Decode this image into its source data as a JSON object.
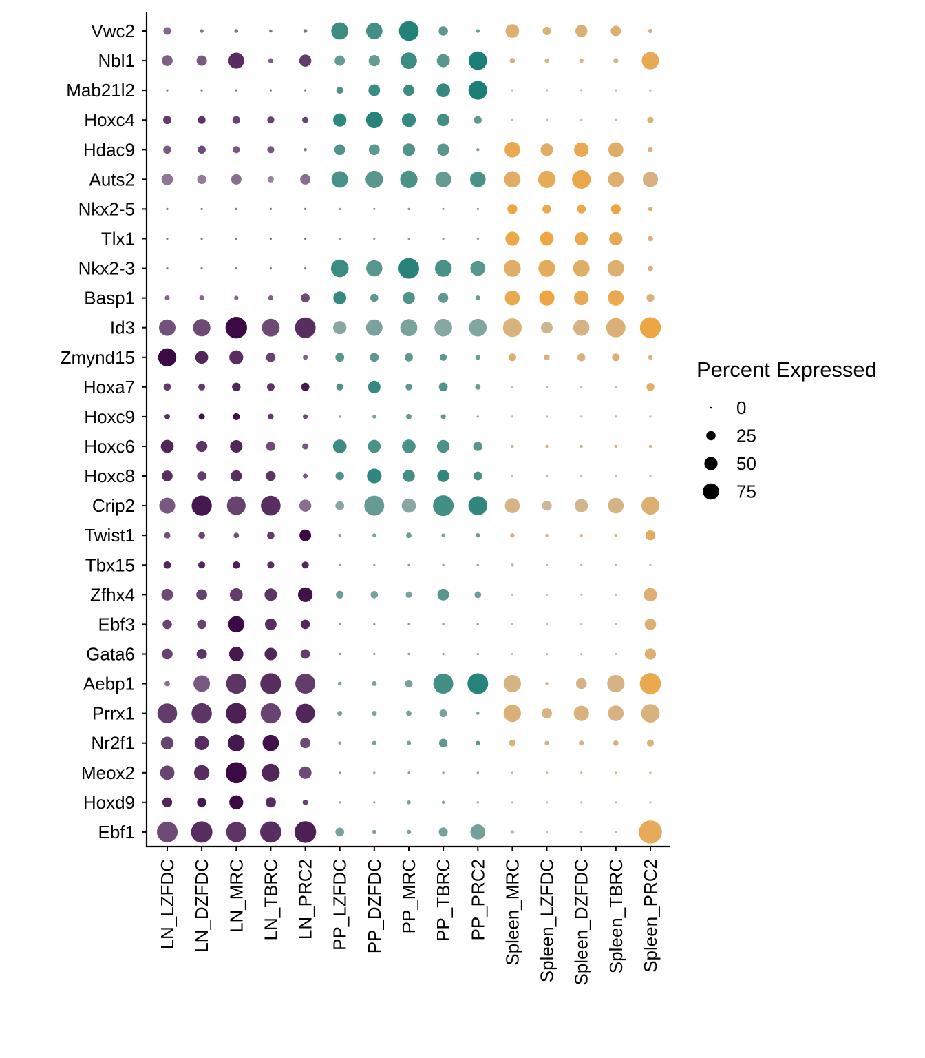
{
  "chart_data": {
    "type": "dot",
    "genes": [
      "Vwc2",
      "Nbl1",
      "Mab21l2",
      "Hoxc4",
      "Hdac9",
      "Auts2",
      "Nkx2-5",
      "Tlx1",
      "Nkx2-3",
      "Basp1",
      "Id3",
      "Zmynd15",
      "Hoxa7",
      "Hoxc9",
      "Hoxc6",
      "Hoxc8",
      "Crip2",
      "Twist1",
      "Tbx15",
      "Zfhx4",
      "Ebf3",
      "Gata6",
      "Aebp1",
      "Prrx1",
      "Nr2f1",
      "Meox2",
      "Hoxd9",
      "Ebf1"
    ],
    "cell_types": [
      "LN_LZFDC",
      "LN_DZFDC",
      "LN_MRC",
      "LN_TBRC",
      "LN_PRC2",
      "PP_LZFDC",
      "PP_DZFDC",
      "PP_MRC",
      "PP_TBRC",
      "PP_PRC2",
      "Spleen_MRC",
      "Spleen_LZFDC",
      "Spleen_DZFDC",
      "Spleen_TBRC",
      "Spleen_PRC2"
    ],
    "groups": [
      {
        "name": "LN",
        "color_strong": "#3b0a45",
        "color_weak": "#a99aae"
      },
      {
        "name": "PP",
        "color_strong": "#1a7f74",
        "color_weak": "#a3b1ad"
      },
      {
        "name": "Spleen",
        "color_strong": "#f0a540",
        "color_weak": "#c9b9a2"
      }
    ],
    "percent_expressed": [
      [
        12,
        3,
        3,
        2,
        3,
        60,
        55,
        80,
        18,
        3,
        38,
        14,
        30,
        22,
        4
      ],
      [
        24,
        22,
        52,
        5,
        30,
        22,
        26,
        55,
        35,
        70,
        6,
        4,
        4,
        5,
        62
      ],
      [
        1,
        1,
        1,
        1,
        1,
        10,
        28,
        25,
        38,
        72,
        1,
        1,
        1,
        1,
        1
      ],
      [
        14,
        12,
        12,
        10,
        8,
        36,
        56,
        40,
        32,
        12,
        1,
        1,
        1,
        1,
        8
      ],
      [
        13,
        13,
        10,
        10,
        2,
        24,
        24,
        32,
        30,
        2,
        50,
        32,
        44,
        46,
        5
      ],
      [
        27,
        17,
        22,
        8,
        22,
        56,
        62,
        62,
        52,
        50,
        55,
        62,
        72,
        50,
        48
      ],
      [
        1,
        1,
        1,
        1,
        1,
        1,
        1,
        1,
        1,
        1,
        20,
        16,
        16,
        20,
        4
      ],
      [
        1,
        1,
        1,
        1,
        1,
        1,
        1,
        1,
        1,
        1,
        40,
        38,
        36,
        36,
        6
      ],
      [
        1,
        1,
        1,
        1,
        1,
        64,
        54,
        88,
        58,
        46,
        58,
        58,
        56,
        56,
        6
      ],
      [
        5,
        5,
        4,
        5,
        16,
        34,
        13,
        30,
        20,
        5,
        46,
        48,
        44,
        50,
        12
      ],
      [
        56,
        62,
        96,
        65,
        88,
        36,
        56,
        60,
        64,
        64,
        72,
        28,
        54,
        76,
        90
      ],
      [
        68,
        34,
        40,
        18,
        5,
        16,
        16,
        14,
        10,
        5,
        12,
        7,
        13,
        12,
        4
      ],
      [
        11,
        10,
        15,
        12,
        14,
        10,
        32,
        9,
        16,
        6,
        1,
        1,
        1,
        1,
        13
      ],
      [
        6,
        8,
        10,
        7,
        5,
        1,
        3,
        6,
        5,
        1,
        1,
        1,
        1,
        1,
        1
      ],
      [
        34,
        26,
        32,
        18,
        8,
        38,
        34,
        38,
        33,
        18,
        2,
        2,
        2,
        2,
        2
      ],
      [
        24,
        18,
        26,
        20,
        5,
        15,
        44,
        30,
        30,
        16,
        1,
        1,
        1,
        1,
        1
      ],
      [
        52,
        84,
        72,
        80,
        30,
        16,
        82,
        42,
        88,
        74,
        46,
        20,
        36,
        50,
        66
      ],
      [
        8,
        9,
        6,
        11,
        28,
        2,
        3,
        6,
        3,
        4,
        4,
        2,
        2,
        2,
        20
      ],
      [
        11,
        10,
        11,
        10,
        10,
        1,
        1,
        1,
        1,
        1,
        2,
        1,
        1,
        1,
        1
      ],
      [
        28,
        24,
        34,
        32,
        44,
        12,
        11,
        8,
        28,
        9,
        1,
        1,
        1,
        1,
        36
      ],
      [
        18,
        18,
        54,
        28,
        18,
        1,
        1,
        1,
        1,
        1,
        1,
        1,
        1,
        1,
        27
      ],
      [
        24,
        22,
        42,
        32,
        19,
        1,
        1,
        1,
        1,
        1,
        1,
        1,
        1,
        1,
        26
      ],
      [
        6,
        56,
        84,
        90,
        82,
        3,
        5,
        12,
        82,
        88,
        62,
        2,
        24,
        62,
        92
      ],
      [
        80,
        85,
        88,
        84,
        76,
        5,
        5,
        6,
        12,
        2,
        62,
        22,
        48,
        50,
        70
      ],
      [
        33,
        42,
        58,
        55,
        22,
        2,
        4,
        4,
        15,
        4,
        9,
        4,
        5,
        6,
        10
      ],
      [
        42,
        48,
        92,
        66,
        32,
        1,
        1,
        1,
        1,
        1,
        1,
        1,
        1,
        1,
        1
      ],
      [
        20,
        18,
        40,
        22,
        6,
        1,
        1,
        3,
        2,
        1,
        1,
        1,
        1,
        1,
        1
      ],
      [
        88,
        94,
        84,
        92,
        96,
        16,
        4,
        4,
        17,
        46,
        3,
        1,
        1,
        1,
        110
      ]
    ],
    "scaled_expression": [
      [
        0.35,
        0.3,
        0.3,
        0.3,
        0.3,
        0.75,
        0.7,
        0.95,
        0.5,
        0.4,
        0.5,
        0.4,
        0.45,
        0.45,
        0.3
      ],
      [
        0.4,
        0.45,
        0.75,
        0.4,
        0.65,
        0.45,
        0.45,
        0.75,
        0.55,
        1.0,
        0.35,
        0.3,
        0.3,
        0.3,
        0.8
      ],
      [
        0.3,
        0.3,
        0.3,
        0.3,
        0.3,
        0.6,
        0.75,
        0.75,
        0.8,
        1.0,
        0.3,
        0.3,
        0.3,
        0.3,
        0.3
      ],
      [
        0.65,
        0.7,
        0.6,
        0.6,
        0.6,
        0.85,
        0.9,
        0.8,
        0.7,
        0.5,
        0.3,
        0.3,
        0.3,
        0.3,
        0.35
      ],
      [
        0.45,
        0.55,
        0.45,
        0.45,
        0.3,
        0.6,
        0.5,
        0.6,
        0.55,
        0.3,
        0.85,
        0.65,
        0.8,
        0.6,
        0.3
      ],
      [
        0.25,
        0.2,
        0.3,
        0.15,
        0.3,
        0.65,
        0.55,
        0.65,
        0.45,
        0.65,
        0.6,
        0.75,
        0.9,
        0.5,
        0.35
      ],
      [
        0.3,
        0.3,
        0.3,
        0.3,
        0.3,
        0.3,
        0.3,
        0.3,
        0.3,
        0.3,
        0.95,
        0.9,
        0.9,
        0.95,
        0.4
      ],
      [
        0.3,
        0.3,
        0.3,
        0.3,
        0.3,
        0.3,
        0.3,
        0.3,
        0.3,
        0.3,
        0.9,
        0.95,
        0.85,
        0.8,
        0.4
      ],
      [
        0.3,
        0.3,
        0.3,
        0.3,
        0.3,
        0.75,
        0.55,
        0.9,
        0.65,
        0.55,
        0.6,
        0.7,
        0.6,
        0.5,
        0.35
      ],
      [
        0.35,
        0.35,
        0.35,
        0.4,
        0.55,
        0.8,
        0.5,
        0.6,
        0.5,
        0.4,
        0.85,
        0.95,
        0.8,
        0.85,
        0.35
      ],
      [
        0.5,
        0.55,
        1.0,
        0.55,
        0.75,
        0.2,
        0.3,
        0.3,
        0.2,
        0.25,
        0.4,
        0.15,
        0.3,
        0.45,
        0.95
      ],
      [
        1.0,
        0.8,
        0.75,
        0.6,
        0.4,
        0.55,
        0.5,
        0.5,
        0.5,
        0.4,
        0.5,
        0.4,
        0.4,
        0.45,
        0.3
      ],
      [
        0.65,
        0.65,
        0.8,
        0.7,
        0.9,
        0.6,
        0.8,
        0.5,
        0.6,
        0.4,
        0.3,
        0.3,
        0.3,
        0.3,
        0.6
      ],
      [
        0.75,
        0.95,
        0.95,
        0.65,
        0.55,
        0.3,
        0.3,
        0.5,
        0.5,
        0.3,
        0.3,
        0.3,
        0.3,
        0.3,
        0.3
      ],
      [
        0.8,
        0.7,
        0.8,
        0.55,
        0.45,
        0.75,
        0.65,
        0.65,
        0.65,
        0.55,
        0.3,
        0.3,
        0.3,
        0.3,
        0.3
      ],
      [
        0.75,
        0.65,
        0.75,
        0.7,
        0.45,
        0.6,
        0.85,
        0.7,
        0.85,
        0.65,
        0.3,
        0.3,
        0.3,
        0.3,
        0.3
      ],
      [
        0.45,
        0.9,
        0.6,
        0.75,
        0.3,
        0.2,
        0.45,
        0.2,
        0.7,
        0.85,
        0.3,
        0.1,
        0.2,
        0.3,
        0.5
      ],
      [
        0.5,
        0.6,
        0.5,
        0.65,
        1.0,
        0.3,
        0.3,
        0.4,
        0.3,
        0.4,
        0.35,
        0.3,
        0.3,
        0.3,
        0.7
      ],
      [
        0.8,
        0.8,
        0.85,
        0.75,
        0.8,
        0.3,
        0.3,
        0.3,
        0.3,
        0.3,
        0.3,
        0.3,
        0.3,
        0.3,
        0.3
      ],
      [
        0.55,
        0.6,
        0.65,
        0.7,
        0.95,
        0.4,
        0.3,
        0.3,
        0.55,
        0.4,
        0.3,
        0.3,
        0.3,
        0.3,
        0.5
      ],
      [
        0.6,
        0.6,
        1.0,
        0.75,
        0.8,
        0.3,
        0.3,
        0.3,
        0.3,
        0.3,
        0.3,
        0.3,
        0.3,
        0.3,
        0.5
      ],
      [
        0.6,
        0.7,
        0.9,
        0.8,
        0.65,
        0.3,
        0.3,
        0.3,
        0.3,
        0.3,
        0.3,
        0.3,
        0.3,
        0.3,
        0.5
      ],
      [
        0.3,
        0.45,
        0.7,
        0.75,
        0.65,
        0.3,
        0.3,
        0.3,
        0.7,
        0.9,
        0.3,
        0.3,
        0.3,
        0.3,
        0.85
      ],
      [
        0.65,
        0.7,
        0.85,
        0.6,
        0.8,
        0.3,
        0.3,
        0.3,
        0.3,
        0.3,
        0.45,
        0.3,
        0.4,
        0.35,
        0.4
      ],
      [
        0.6,
        0.75,
        0.9,
        0.95,
        0.55,
        0.3,
        0.3,
        0.3,
        0.5,
        0.5,
        0.4,
        0.3,
        0.3,
        0.3,
        0.3
      ],
      [
        0.6,
        0.75,
        1.0,
        0.8,
        0.55,
        0.3,
        0.3,
        0.3,
        0.3,
        0.3,
        0.3,
        0.3,
        0.3,
        0.3,
        0.3
      ],
      [
        0.8,
        0.9,
        1.0,
        0.75,
        0.6,
        0.3,
        0.3,
        0.3,
        0.3,
        0.3,
        0.3,
        0.3,
        0.3,
        0.3,
        0.3
      ],
      [
        0.55,
        0.75,
        0.7,
        0.75,
        0.85,
        0.3,
        0.3,
        0.3,
        0.3,
        0.35,
        0.3,
        0.3,
        0.3,
        0.3,
        0.75
      ]
    ],
    "legend": {
      "title": "Percent Expressed",
      "values": [
        0,
        25,
        50,
        75
      ],
      "labels": [
        "0",
        "25",
        "50",
        "75"
      ],
      "placement": "right"
    },
    "size_range_percent": [
      0,
      110
    ]
  }
}
